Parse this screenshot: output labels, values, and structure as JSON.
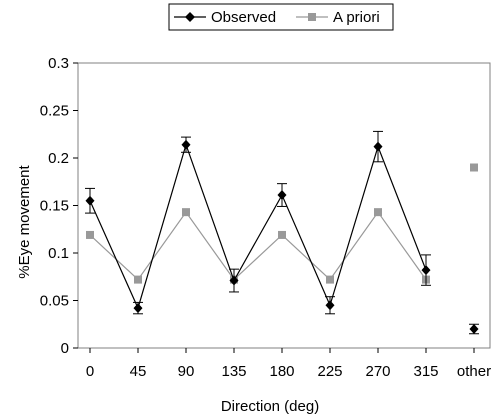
{
  "chart_data": {
    "type": "line",
    "categories": [
      "0",
      "45",
      "90",
      "135",
      "180",
      "225",
      "270",
      "315",
      "other"
    ],
    "xlabel": "Direction (deg)",
    "ylabel": "%Eye movement",
    "ylim": [
      0,
      0.3
    ],
    "yticks": [
      "0",
      "0.05",
      "0.1",
      "0.15",
      "0.2",
      "0.25",
      "0.3"
    ],
    "grid": false,
    "legend_position": "top",
    "series": [
      {
        "name": "Observed",
        "color": "#000000",
        "marker": "diamond",
        "values": [
          0.155,
          0.042,
          0.214,
          0.071,
          0.161,
          0.045,
          0.212,
          0.082,
          0.02
        ],
        "errors": [
          0.013,
          0.006,
          0.008,
          0.012,
          0.012,
          0.009,
          0.016,
          0.016,
          0.005
        ],
        "connected_through": 7
      },
      {
        "name": "A priori",
        "color": "#999999",
        "marker": "square",
        "values": [
          0.119,
          0.072,
          0.143,
          0.072,
          0.119,
          0.072,
          0.143,
          0.072,
          0.19
        ],
        "connected_through": 7
      }
    ]
  }
}
